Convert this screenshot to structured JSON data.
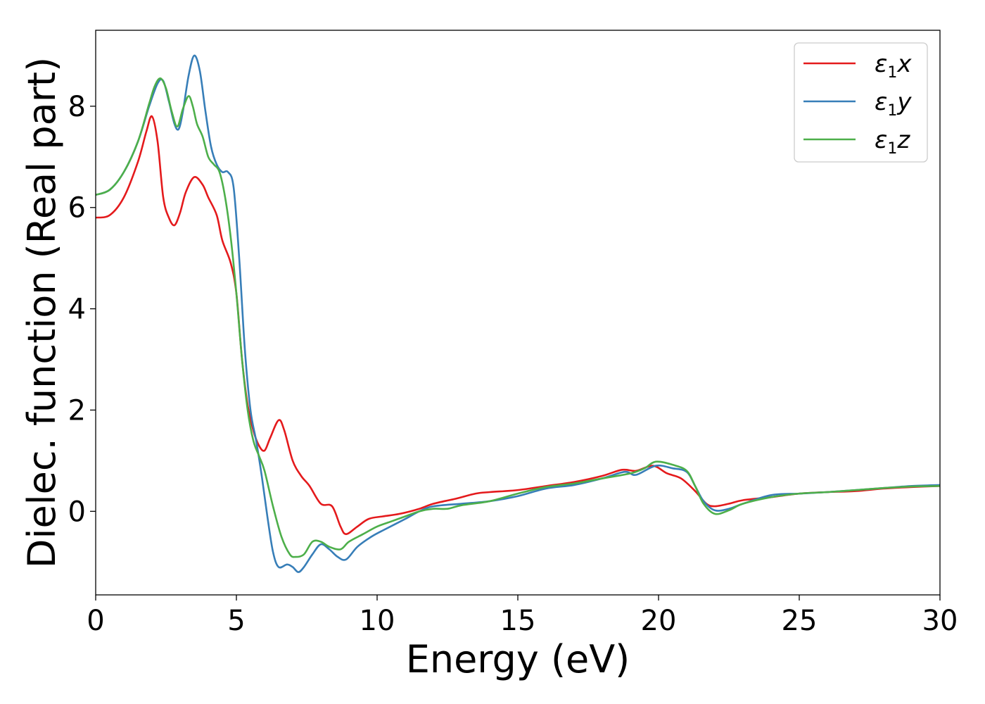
{
  "chart_data": {
    "type": "line",
    "xlabel": "Energy (eV)",
    "ylabel": "Dielec. function (Real part)",
    "xlim": [
      0,
      30
    ],
    "ylim": [
      -1.65,
      9.5
    ],
    "xticks": [
      0,
      5,
      10,
      15,
      20,
      25,
      30
    ],
    "yticks": [
      0,
      2,
      4,
      6,
      8
    ],
    "grid": false,
    "legend_position": "top-right",
    "series": [
      {
        "name": "ε1x",
        "legend": {
          "base": "ε",
          "sub": "1",
          "var": "x"
        },
        "color": "#e41a1c",
        "points": [
          [
            0,
            5.8
          ],
          [
            0.5,
            5.85
          ],
          [
            1.0,
            6.2
          ],
          [
            1.5,
            6.9
          ],
          [
            1.8,
            7.5
          ],
          [
            2.0,
            7.8
          ],
          [
            2.2,
            7.3
          ],
          [
            2.4,
            6.2
          ],
          [
            2.6,
            5.8
          ],
          [
            2.8,
            5.65
          ],
          [
            3.0,
            5.9
          ],
          [
            3.2,
            6.3
          ],
          [
            3.5,
            6.6
          ],
          [
            3.8,
            6.45
          ],
          [
            4.0,
            6.2
          ],
          [
            4.3,
            5.85
          ],
          [
            4.5,
            5.35
          ],
          [
            4.8,
            4.9
          ],
          [
            5.0,
            4.3
          ],
          [
            5.2,
            3.0
          ],
          [
            5.4,
            2.1
          ],
          [
            5.6,
            1.6
          ],
          [
            5.8,
            1.3
          ],
          [
            6.0,
            1.2
          ],
          [
            6.2,
            1.45
          ],
          [
            6.5,
            1.8
          ],
          [
            6.7,
            1.6
          ],
          [
            7.0,
            1.0
          ],
          [
            7.3,
            0.7
          ],
          [
            7.6,
            0.5
          ],
          [
            8.0,
            0.15
          ],
          [
            8.4,
            0.1
          ],
          [
            8.7,
            -0.3
          ],
          [
            8.9,
            -0.45
          ],
          [
            9.3,
            -0.3
          ],
          [
            9.7,
            -0.15
          ],
          [
            10.2,
            -0.1
          ],
          [
            10.8,
            -0.05
          ],
          [
            11.5,
            0.05
          ],
          [
            12.0,
            0.15
          ],
          [
            12.8,
            0.25
          ],
          [
            13.5,
            0.35
          ],
          [
            14.0,
            0.38
          ],
          [
            15.0,
            0.42
          ],
          [
            16.0,
            0.5
          ],
          [
            17.0,
            0.58
          ],
          [
            18.0,
            0.7
          ],
          [
            18.7,
            0.82
          ],
          [
            19.2,
            0.8
          ],
          [
            19.8,
            0.9
          ],
          [
            20.3,
            0.75
          ],
          [
            20.8,
            0.65
          ],
          [
            21.3,
            0.4
          ],
          [
            21.7,
            0.15
          ],
          [
            22.0,
            0.1
          ],
          [
            22.5,
            0.15
          ],
          [
            23.0,
            0.22
          ],
          [
            24.0,
            0.28
          ],
          [
            25.0,
            0.35
          ],
          [
            26.0,
            0.38
          ],
          [
            27.0,
            0.4
          ],
          [
            28.0,
            0.45
          ],
          [
            29.0,
            0.48
          ],
          [
            30.0,
            0.5
          ]
        ]
      },
      {
        "name": "ε1y",
        "legend": {
          "base": "ε",
          "sub": "1",
          "var": "y"
        },
        "color": "#377eb8",
        "points": [
          [
            0,
            6.25
          ],
          [
            0.5,
            6.35
          ],
          [
            1.0,
            6.7
          ],
          [
            1.5,
            7.3
          ],
          [
            1.9,
            8.0
          ],
          [
            2.2,
            8.45
          ],
          [
            2.4,
            8.5
          ],
          [
            2.6,
            8.1
          ],
          [
            2.8,
            7.65
          ],
          [
            2.95,
            7.55
          ],
          [
            3.1,
            7.9
          ],
          [
            3.3,
            8.6
          ],
          [
            3.5,
            9.0
          ],
          [
            3.7,
            8.7
          ],
          [
            3.9,
            7.9
          ],
          [
            4.1,
            7.2
          ],
          [
            4.3,
            6.85
          ],
          [
            4.5,
            6.7
          ],
          [
            4.7,
            6.7
          ],
          [
            4.9,
            6.4
          ],
          [
            5.1,
            5.0
          ],
          [
            5.3,
            3.2
          ],
          [
            5.5,
            2.0
          ],
          [
            5.7,
            1.4
          ],
          [
            5.9,
            0.7
          ],
          [
            6.1,
            -0.1
          ],
          [
            6.3,
            -0.8
          ],
          [
            6.5,
            -1.1
          ],
          [
            6.8,
            -1.05
          ],
          [
            7.0,
            -1.1
          ],
          [
            7.2,
            -1.2
          ],
          [
            7.4,
            -1.1
          ],
          [
            7.7,
            -0.85
          ],
          [
            8.0,
            -0.65
          ],
          [
            8.3,
            -0.75
          ],
          [
            8.6,
            -0.9
          ],
          [
            8.9,
            -0.95
          ],
          [
            9.3,
            -0.7
          ],
          [
            9.8,
            -0.5
          ],
          [
            10.3,
            -0.35
          ],
          [
            11.0,
            -0.15
          ],
          [
            11.5,
            0.0
          ],
          [
            12.0,
            0.1
          ],
          [
            13.0,
            0.15
          ],
          [
            14.0,
            0.2
          ],
          [
            15.0,
            0.3
          ],
          [
            16.0,
            0.45
          ],
          [
            17.0,
            0.52
          ],
          [
            18.0,
            0.65
          ],
          [
            18.8,
            0.78
          ],
          [
            19.2,
            0.72
          ],
          [
            19.9,
            0.9
          ],
          [
            20.5,
            0.85
          ],
          [
            21.0,
            0.78
          ],
          [
            21.3,
            0.5
          ],
          [
            21.6,
            0.2
          ],
          [
            22.0,
            0.02
          ],
          [
            22.5,
            0.05
          ],
          [
            23.0,
            0.15
          ],
          [
            24.0,
            0.32
          ],
          [
            25.0,
            0.35
          ],
          [
            26.0,
            0.38
          ],
          [
            27.0,
            0.42
          ],
          [
            28.0,
            0.46
          ],
          [
            29.0,
            0.5
          ],
          [
            30.0,
            0.52
          ]
        ]
      },
      {
        "name": "ε1z",
        "legend": {
          "base": "ε",
          "sub": "1",
          "var": "z"
        },
        "color": "#4daf4a",
        "points": [
          [
            0,
            6.25
          ],
          [
            0.5,
            6.35
          ],
          [
            1.0,
            6.7
          ],
          [
            1.5,
            7.3
          ],
          [
            1.9,
            8.05
          ],
          [
            2.1,
            8.4
          ],
          [
            2.3,
            8.55
          ],
          [
            2.5,
            8.35
          ],
          [
            2.7,
            7.9
          ],
          [
            2.9,
            7.6
          ],
          [
            3.1,
            7.95
          ],
          [
            3.3,
            8.2
          ],
          [
            3.45,
            8.0
          ],
          [
            3.6,
            7.65
          ],
          [
            3.8,
            7.4
          ],
          [
            4.0,
            7.0
          ],
          [
            4.2,
            6.85
          ],
          [
            4.4,
            6.7
          ],
          [
            4.6,
            6.2
          ],
          [
            4.8,
            5.4
          ],
          [
            5.0,
            4.3
          ],
          [
            5.2,
            3.0
          ],
          [
            5.4,
            2.0
          ],
          [
            5.6,
            1.4
          ],
          [
            5.8,
            1.1
          ],
          [
            6.0,
            0.8
          ],
          [
            6.3,
            0.1
          ],
          [
            6.6,
            -0.5
          ],
          [
            6.9,
            -0.85
          ],
          [
            7.1,
            -0.9
          ],
          [
            7.4,
            -0.85
          ],
          [
            7.7,
            -0.6
          ],
          [
            8.0,
            -0.6
          ],
          [
            8.3,
            -0.7
          ],
          [
            8.7,
            -0.75
          ],
          [
            9.0,
            -0.6
          ],
          [
            9.5,
            -0.45
          ],
          [
            10.0,
            -0.3
          ],
          [
            10.5,
            -0.2
          ],
          [
            11.0,
            -0.1
          ],
          [
            11.5,
            0.0
          ],
          [
            12.0,
            0.05
          ],
          [
            12.5,
            0.05
          ],
          [
            13.0,
            0.12
          ],
          [
            14.0,
            0.2
          ],
          [
            15.0,
            0.35
          ],
          [
            16.0,
            0.48
          ],
          [
            17.0,
            0.55
          ],
          [
            18.0,
            0.65
          ],
          [
            19.0,
            0.75
          ],
          [
            19.5,
            0.85
          ],
          [
            19.9,
            0.98
          ],
          [
            20.5,
            0.92
          ],
          [
            21.0,
            0.8
          ],
          [
            21.3,
            0.5
          ],
          [
            21.6,
            0.15
          ],
          [
            22.0,
            -0.05
          ],
          [
            22.5,
            0.02
          ],
          [
            23.0,
            0.15
          ],
          [
            24.0,
            0.28
          ],
          [
            25.0,
            0.35
          ],
          [
            26.0,
            0.38
          ],
          [
            27.0,
            0.42
          ],
          [
            28.0,
            0.46
          ],
          [
            29.0,
            0.49
          ],
          [
            30.0,
            0.5
          ]
        ]
      }
    ]
  }
}
